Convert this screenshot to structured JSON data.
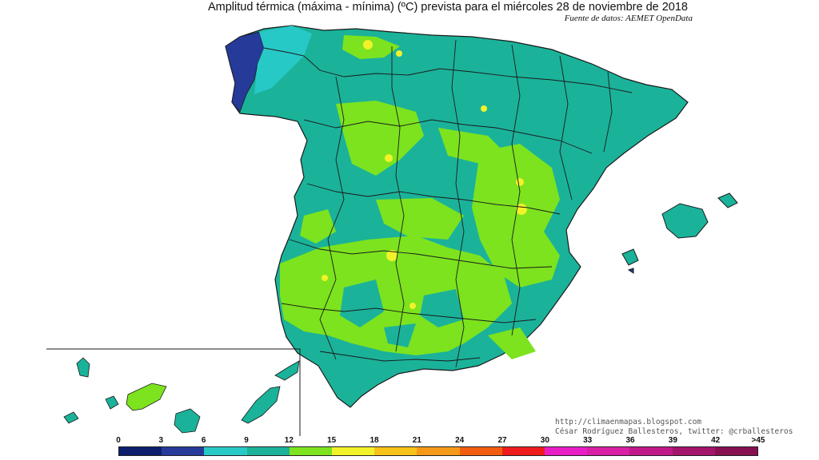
{
  "title": "Amplitud térmica (máxima - mínima) (ºC) prevista para el miércoles 28 de noviembre de 2018",
  "source": "Fuente de datos: AEMET OpenData",
  "credit_line1": "http://climaenmapas.blogspot.com",
  "credit_line2": "César Rodríguez Ballesteros, twitter: @crballesteros",
  "legend": {
    "labels": [
      "0",
      "3",
      "6",
      "9",
      "12",
      "15",
      "18",
      "21",
      "24",
      "27",
      "30",
      "33",
      "36",
      "39",
      "42",
      ">45"
    ],
    "colors": [
      "#0c1e6b",
      "#263a9a",
      "#27c9c6",
      "#1bb29a",
      "#7ce31e",
      "#f2f22a",
      "#f7c21a",
      "#f59a18",
      "#f25c10",
      "#ee1c1c",
      "#e91ec6",
      "#d81fa6",
      "#c0188a",
      "#a3146d",
      "#861052"
    ]
  },
  "colors": {
    "teal": "#1bb29a",
    "green": "#7ce31e",
    "cyan": "#27c9c6",
    "navy": "#263a9a",
    "yellow": "#f2f22a",
    "border": "#1a1a1a"
  }
}
